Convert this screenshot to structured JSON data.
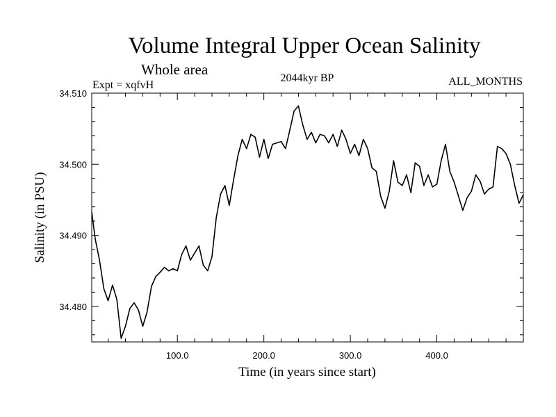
{
  "header": {
    "title": "Volume Integral Upper Ocean Salinity",
    "subtitle": "Whole area",
    "experiment": "Expt = xqfvH",
    "period": "2044kyr BP",
    "months": "ALL_MONTHS"
  },
  "chart_data": {
    "type": "line",
    "title": "Volume Integral Upper Ocean Salinity",
    "xlabel": "Time (in years since start)",
    "ylabel": "Salinity (in PSU)",
    "xlim": [
      1,
      500
    ],
    "ylim": [
      34.475,
      34.51
    ],
    "x_ticks": [
      100,
      200,
      300,
      400
    ],
    "x_tick_labels": [
      "100.0",
      "200.0",
      "300.0",
      "400.0"
    ],
    "y_ticks": [
      34.48,
      34.49,
      34.5,
      34.51
    ],
    "y_tick_labels": [
      "34.480",
      "34.490",
      "34.500",
      "34.510"
    ],
    "grid": false,
    "series": [
      {
        "name": "Salinity",
        "x": [
          1,
          5,
          10,
          15,
          20,
          25,
          30,
          35,
          40,
          45,
          50,
          55,
          60,
          65,
          70,
          75,
          80,
          85,
          90,
          95,
          100,
          105,
          110,
          115,
          120,
          125,
          130,
          135,
          140,
          145,
          150,
          155,
          160,
          165,
          170,
          175,
          180,
          185,
          190,
          195,
          200,
          205,
          210,
          215,
          220,
          225,
          230,
          235,
          240,
          245,
          250,
          255,
          260,
          265,
          270,
          275,
          280,
          285,
          290,
          295,
          300,
          305,
          310,
          315,
          320,
          325,
          330,
          335,
          340,
          345,
          350,
          355,
          360,
          365,
          370,
          375,
          380,
          385,
          390,
          395,
          400,
          405,
          410,
          415,
          420,
          425,
          430,
          435,
          440,
          445,
          450,
          455,
          460,
          465,
          470,
          475,
          480,
          485,
          490,
          495,
          500
        ],
        "values": [
          34.4933,
          34.4895,
          34.4865,
          34.4825,
          34.4808,
          34.483,
          34.481,
          34.4755,
          34.4772,
          34.4797,
          34.4805,
          34.4795,
          34.4772,
          34.4792,
          34.4828,
          34.4842,
          34.4848,
          34.4855,
          34.485,
          34.4853,
          34.485,
          34.4873,
          34.4885,
          34.4865,
          34.4875,
          34.4885,
          34.4858,
          34.485,
          34.487,
          34.4925,
          34.4958,
          34.497,
          34.4942,
          34.4978,
          34.5012,
          34.5035,
          34.5022,
          34.5042,
          34.5038,
          34.501,
          34.5035,
          34.5008,
          34.5028,
          34.503,
          34.5032,
          34.5022,
          34.5048,
          34.5075,
          34.5082,
          34.5055,
          34.5035,
          34.5045,
          34.503,
          34.5042,
          34.504,
          34.503,
          34.5042,
          34.5025,
          34.5048,
          34.5035,
          34.5015,
          34.5028,
          34.5012,
          34.5035,
          34.5022,
          34.4995,
          34.499,
          34.4955,
          34.4938,
          34.4962,
          34.5005,
          34.4975,
          34.497,
          34.4985,
          34.496,
          34.5002,
          34.4997,
          34.497,
          34.4985,
          34.4968,
          34.4972,
          34.5005,
          34.5028,
          34.499,
          34.4975,
          34.4955,
          34.4935,
          34.4953,
          34.4962,
          34.4985,
          34.4976,
          34.4958,
          34.4965,
          34.4968,
          34.5025,
          34.5022,
          34.5015,
          34.5,
          34.497,
          34.4945,
          34.4957
        ]
      }
    ]
  }
}
